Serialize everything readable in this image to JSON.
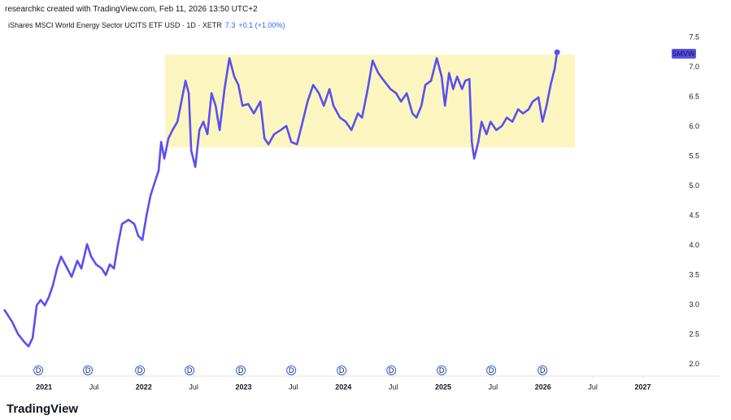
{
  "header": {
    "credit": "researchkc created with TradingView.com, Feb 11, 2026 13:50 UTC+2",
    "symbol": "iShares MSCI World Energy Sector UCITS ETF USD · 1D · XETR",
    "last": "7.3",
    "change": "+0.1 (+1.00%)"
  },
  "footer": {
    "brand": "TradingView"
  },
  "chart_data": {
    "type": "line",
    "xlim": [
      2020.6,
      2027.2
    ],
    "ylim": [
      1.8,
      7.65
    ],
    "xticks": [
      2021,
      {
        "value": 2021.5,
        "label": "Jul"
      },
      2022,
      {
        "value": 2022.5,
        "label": "Jul"
      },
      2023,
      {
        "value": 2023.5,
        "label": "Jul"
      },
      2024,
      {
        "value": 2024.5,
        "label": "Jul"
      },
      2025,
      {
        "value": 2025.5,
        "label": "Jul"
      },
      2026,
      {
        "value": 2026.5,
        "label": "Jul"
      },
      2027
    ],
    "yticks": [
      {
        "value": 2,
        "label": "2.0"
      },
      2.5,
      {
        "value": 3,
        "label": "3.0"
      },
      3.5,
      {
        "value": 4,
        "label": "4.0"
      },
      4.5,
      {
        "value": 5,
        "label": "5.0"
      },
      5.5,
      {
        "value": 6,
        "label": "6.0"
      },
      6.5,
      {
        "value": 7,
        "label": "7.0"
      },
      7.5
    ],
    "x": [
      2020.601,
      2020.682,
      2020.739,
      2020.804,
      2020.845,
      2020.886,
      2020.927,
      2020.967,
      2021.008,
      2021.049,
      2021.09,
      2021.13,
      2021.171,
      2021.212,
      2021.277,
      2021.334,
      2021.375,
      2021.432,
      2021.473,
      2021.522,
      2021.579,
      2021.619,
      2021.66,
      2021.701,
      2021.742,
      2021.782,
      2021.848,
      2021.905,
      2021.945,
      2021.986,
      2022.027,
      2022.068,
      2022.108,
      2022.149,
      2022.174,
      2022.206,
      2022.247,
      2022.288,
      2022.337,
      2022.369,
      2022.418,
      2022.451,
      2022.475,
      2022.516,
      2022.557,
      2022.597,
      2022.638,
      2022.679,
      2022.72,
      2022.76,
      2022.809,
      2022.858,
      2022.907,
      2022.948,
      2022.989,
      2023.046,
      2023.103,
      2023.168,
      2023.209,
      2023.249,
      2023.306,
      2023.372,
      2023.429,
      2023.478,
      2023.535,
      2023.592,
      2023.641,
      2023.698,
      2023.755,
      2023.804,
      2023.861,
      2023.901,
      2023.966,
      2024.024,
      2024.081,
      2024.146,
      2024.187,
      2024.244,
      2024.293,
      2024.35,
      2024.407,
      2024.472,
      2024.529,
      2024.578,
      2024.635,
      2024.692,
      2024.733,
      2024.782,
      2024.822,
      2024.879,
      2024.936,
      2024.985,
      2025.018,
      2025.059,
      2025.1,
      2025.14,
      2025.189,
      2025.222,
      2025.263,
      2025.287,
      2025.311,
      2025.352,
      2025.385,
      2025.434,
      2025.475,
      2025.532,
      2025.589,
      2025.638,
      2025.694,
      2025.751,
      2025.8,
      2025.857,
      2025.897,
      2025.955,
      2025.996,
      2026.036,
      2026.077,
      2026.117,
      2026.142
    ],
    "series": [
      {
        "name": "5MVW",
        "color": "#5b4ff0",
        "values": [
          2.92,
          2.71,
          2.51,
          2.37,
          2.3,
          2.44,
          2.99,
          3.08,
          2.99,
          3.13,
          3.33,
          3.61,
          3.81,
          3.68,
          3.47,
          3.74,
          3.61,
          4.02,
          3.81,
          3.68,
          3.61,
          3.5,
          3.68,
          3.61,
          4.02,
          4.36,
          4.43,
          4.36,
          4.16,
          4.09,
          4.5,
          4.84,
          5.05,
          5.26,
          5.74,
          5.46,
          5.8,
          5.94,
          6.08,
          6.35,
          6.77,
          6.56,
          5.6,
          5.32,
          5.94,
          6.08,
          5.87,
          6.56,
          6.35,
          5.94,
          6.63,
          7.15,
          6.84,
          6.7,
          6.35,
          6.38,
          6.22,
          6.42,
          5.8,
          5.7,
          5.87,
          5.94,
          6.01,
          5.74,
          5.7,
          6.08,
          6.42,
          6.7,
          6.56,
          6.35,
          6.63,
          6.35,
          6.15,
          6.08,
          5.94,
          6.22,
          6.15,
          6.63,
          7.11,
          6.9,
          6.77,
          6.63,
          6.56,
          6.42,
          6.56,
          6.22,
          6.15,
          6.35,
          6.7,
          6.77,
          7.15,
          6.84,
          6.35,
          6.9,
          6.63,
          6.84,
          6.63,
          6.77,
          6.8,
          5.74,
          5.46,
          5.74,
          6.08,
          5.87,
          6.08,
          5.94,
          6.01,
          6.15,
          6.08,
          6.29,
          6.22,
          6.29,
          6.42,
          6.49,
          6.08,
          6.35,
          6.7,
          6.97,
          7.25
        ]
      }
    ],
    "highlight": {
      "x": [
        2022.214,
        2026.322
      ],
      "y": [
        5.65,
        7.21
      ],
      "color": "#fbf6c0"
    },
    "dividends": {
      "label": "D",
      "color": "#2962ff",
      "x": [
        2020.943,
        2021.44,
        2021.962,
        2022.459,
        2022.972,
        2023.478,
        2023.983,
        2024.48,
        2024.985,
        2025.482,
        2025.996
      ]
    }
  }
}
